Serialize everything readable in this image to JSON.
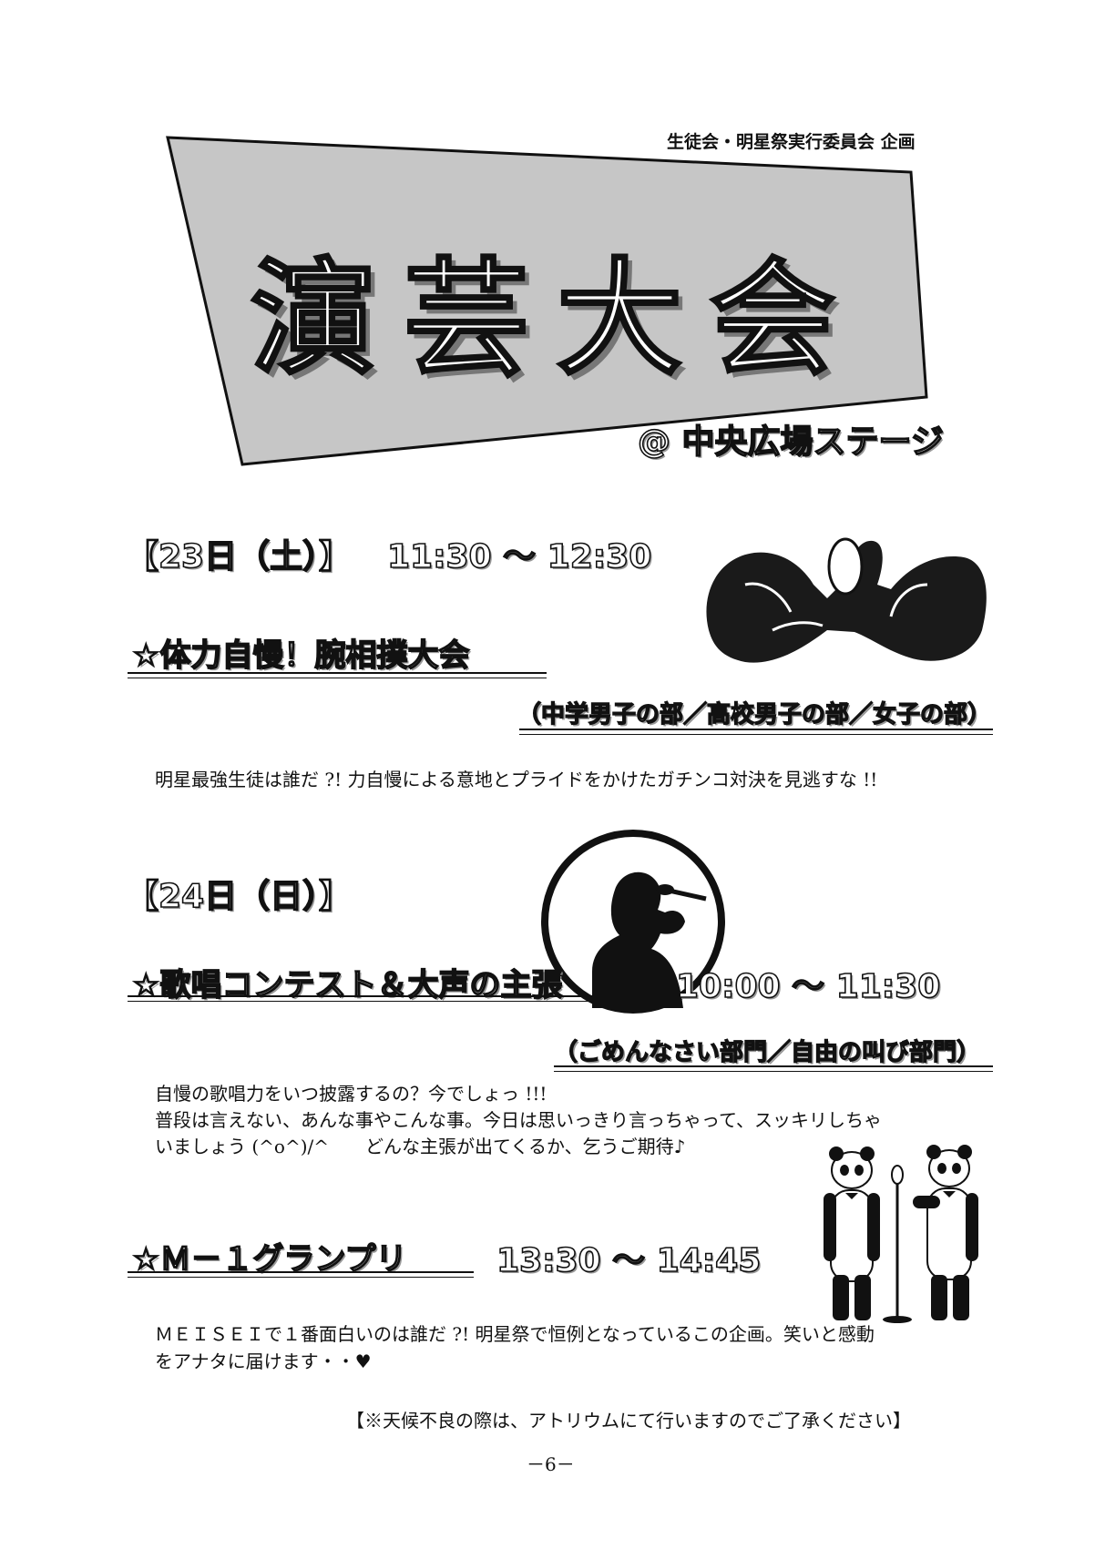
{
  "organizer": "生徒会・明星祭実行委員会 企画",
  "main_title": "演芸大会",
  "venue": "@ 中央広場ステージ",
  "day1": {
    "date": "【23日（土）】",
    "time": "11:30 ～ 12:30",
    "event_title": "☆体力自慢！腕相撲大会",
    "categories": "（中学男子の部／高校男子の部／女子の部）",
    "description": "明星最強生徒は誰だ ?! 力自慢による意地とプライドをかけたガチンコ対決を見逃すな !!"
  },
  "day2": {
    "date": "【24日（日）】",
    "event1": {
      "title": "☆歌唱コンテスト＆大声の主張",
      "time": "10:00 ～ 11:30",
      "categories": "（ごめんなさい部門／自由の叫び部門）",
      "description_lines": [
        "自慢の歌唱力をいつ披露するの？今でしょっ !!!",
        "普段は言えない、あんな事やこんな事。今日は思いっきり言っちゃって、スッキリしちゃ",
        "いましょう (^o^)/^　　どんな主張が出てくるか、乞うご期待♪"
      ]
    },
    "event2": {
      "title": "☆Ｍ－１グランプリ",
      "time": "13:30 ～ 14:45",
      "description_lines": [
        "ＭＥＩＳＥＩで１番面白いのは誰だ ?! 明星祭で恒例となっているこの企画。笑いと感動",
        "をアナタに届けます・・♥"
      ]
    }
  },
  "notice": "【※天候不良の際は、アトリウムにて行いますのでご了承ください】",
  "page_number": "－6－"
}
